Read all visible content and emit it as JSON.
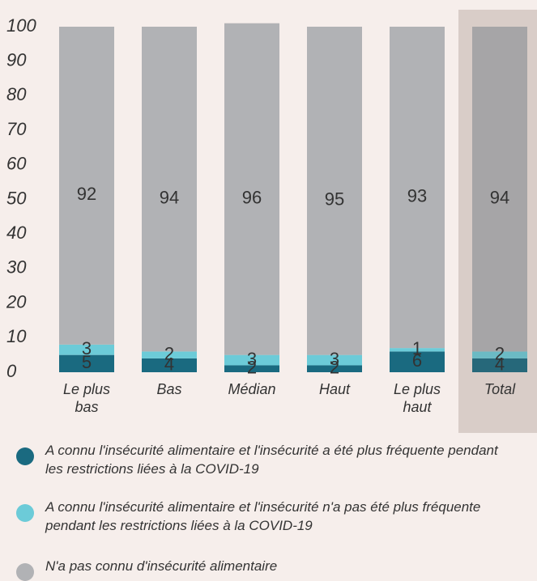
{
  "chart_data": {
    "type": "stacked_bar",
    "categories": [
      "Le plus bas",
      "Bas",
      "Médian",
      "Haut",
      "Le plus haut",
      "Total"
    ],
    "series": [
      {
        "name": "A connu l'insécurité alimentaire et l'insécurité a été plus fréquente pendant les restrictions liées à la COVID-19",
        "color": "#1a6a80",
        "values": [
          5,
          4,
          2,
          2,
          6,
          4
        ]
      },
      {
        "name": "A connu l'insécurité alimentaire et l'insécurité n'a pas été plus fréquente pendant les restrictions liées à la COVID-19",
        "color": "#6ccbd8",
        "values": [
          3,
          2,
          3,
          3,
          1,
          2
        ]
      },
      {
        "name": "N'a pas connu d'insécurité alimentaire",
        "color": "#b1b2b5",
        "values": [
          92,
          94,
          96,
          95,
          93,
          94
        ]
      }
    ],
    "ylim": [
      0,
      100
    ],
    "yticks": [
      0,
      10,
      20,
      30,
      40,
      50,
      60,
      70,
      80,
      90,
      100
    ]
  }
}
